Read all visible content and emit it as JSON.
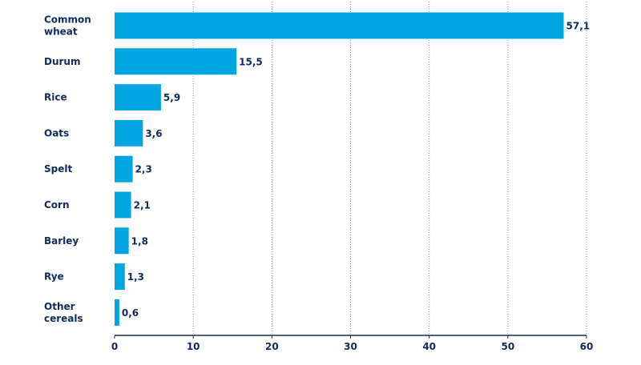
{
  "chart_data": {
    "type": "bar",
    "orientation": "horizontal",
    "categories": [
      [
        "Common",
        "wheat"
      ],
      [
        "Durum"
      ],
      [
        "Rice"
      ],
      [
        "Oats"
      ],
      [
        "Spelt"
      ],
      [
        "Corn"
      ],
      [
        "Barley"
      ],
      [
        "Rye"
      ],
      [
        "Other",
        "cereals"
      ]
    ],
    "values": [
      57.1,
      15.5,
      5.9,
      3.6,
      2.3,
      2.1,
      1.8,
      1.3,
      0.6
    ],
    "value_labels": [
      "57,1",
      "15,5",
      "5,9",
      "3,6",
      "2,3",
      "2,1",
      "1,8",
      "1,3",
      "0,6"
    ],
    "xlim": [
      0,
      60
    ],
    "xticks": [
      0,
      10,
      20,
      30,
      40,
      50,
      60
    ],
    "title": "",
    "xlabel": "",
    "ylabel": "",
    "grid": "vertical dotted",
    "colors": {
      "bar": "#00a6e2",
      "text": "#0f2a5c",
      "grid": "#8a9bb5",
      "axis": "#0f2a5c"
    }
  }
}
